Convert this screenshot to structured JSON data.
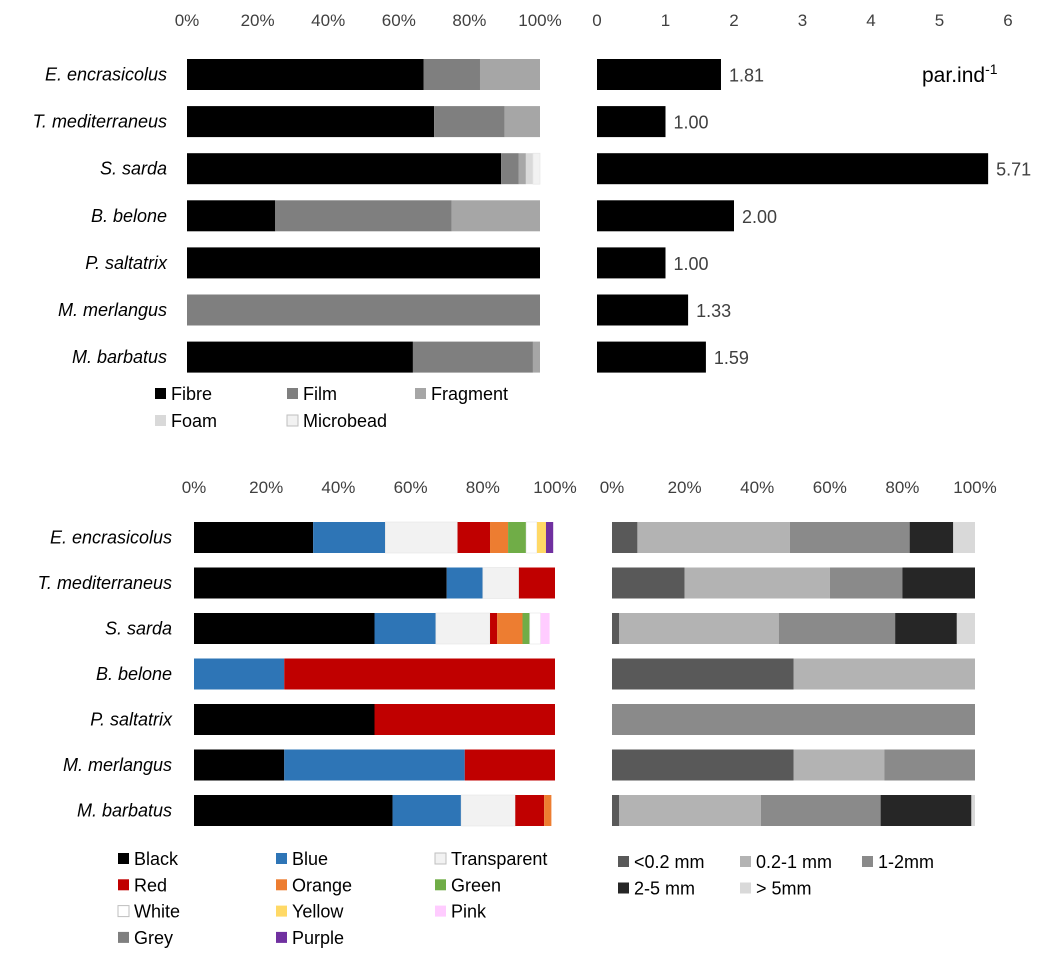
{
  "chart_data": [
    {
      "id": "particle-type",
      "type": "bar",
      "stacked": true,
      "orientation": "horizontal",
      "categories": [
        "E. encrasicolus",
        "T. mediterraneus",
        "S. sarda",
        "B. belone",
        "P. saltatrix",
        "M. merlangus",
        "M. barbatus"
      ],
      "xlim": [
        0,
        100
      ],
      "x_ticks": [
        "0%",
        "20%",
        "40%",
        "60%",
        "80%",
        "100%"
      ],
      "series": [
        {
          "name": "Fibre",
          "color": "#000000",
          "values": [
            67,
            70,
            89,
            25,
            100,
            0,
            64
          ]
        },
        {
          "name": "Film",
          "color": "#7f7f7f",
          "values": [
            16,
            20,
            5,
            50,
            0,
            100,
            34
          ]
        },
        {
          "name": "Fragment",
          "color": "#a6a6a6",
          "values": [
            17,
            10,
            2,
            25,
            0,
            0,
            2
          ]
        },
        {
          "name": "Foam",
          "color": "#d9d9d9",
          "values": [
            0,
            0,
            2,
            0,
            0,
            0,
            0
          ]
        },
        {
          "name": "Microbead",
          "color": "#f2f2f2",
          "values": [
            0,
            0,
            2,
            0,
            0,
            0,
            0
          ]
        }
      ],
      "grid": false,
      "legend_position": "bottom"
    },
    {
      "id": "particles-per-individual",
      "type": "bar",
      "orientation": "horizontal",
      "unit_label": "par.ind",
      "unit_superscript": "-1",
      "categories": [
        "E. encrasicolus",
        "T. mediterraneus",
        "S. sarda",
        "B. belone",
        "P. saltatrix",
        "M. merlangus",
        "M. barbatus"
      ],
      "values": [
        1.81,
        1.0,
        5.71,
        2.0,
        1.0,
        1.33,
        1.59
      ],
      "data_labels": [
        "1.81",
        "1.00",
        "5.71",
        "2.00",
        "1.00",
        "1.33",
        "1.59"
      ],
      "xlim": [
        0,
        6
      ],
      "x_ticks": [
        "0",
        "1",
        "2",
        "3",
        "4",
        "5",
        "6"
      ],
      "color": "#000000",
      "grid": false
    },
    {
      "id": "colour",
      "type": "bar",
      "stacked": true,
      "orientation": "horizontal",
      "categories": [
        "E. encrasicolus",
        "T. mediterraneus",
        "S. sarda",
        "B. belone",
        "P. saltatrix",
        "M. merlangus",
        "M. barbatus"
      ],
      "xlim": [
        0,
        100
      ],
      "x_ticks": [
        "0%",
        "20%",
        "40%",
        "60%",
        "80%",
        "100%"
      ],
      "series": [
        {
          "name": "Black",
          "color": "#000000",
          "values": [
            33,
            70,
            50,
            0,
            50,
            25,
            55
          ]
        },
        {
          "name": "Blue",
          "color": "#2e75b6",
          "values": [
            20,
            10,
            17,
            25,
            0,
            50,
            19
          ]
        },
        {
          "name": "Transparent",
          "color": "#f2f2f2",
          "values": [
            20,
            10,
            15,
            0,
            0,
            0,
            15
          ]
        },
        {
          "name": "Red",
          "color": "#c00000",
          "values": [
            9,
            10,
            2,
            75,
            50,
            25,
            8
          ]
        },
        {
          "name": "Orange",
          "color": "#ed7d31",
          "values": [
            5,
            0,
            7,
            0,
            0,
            0,
            2
          ]
        },
        {
          "name": "Green",
          "color": "#70ad47",
          "values": [
            5,
            0,
            2,
            0,
            0,
            0,
            0
          ]
        },
        {
          "name": "White",
          "color": "#ffffff",
          "values": [
            3,
            0,
            3,
            0,
            0,
            0,
            0
          ]
        },
        {
          "name": "Yellow",
          "color": "#ffd966",
          "values": [
            2.5,
            0,
            0,
            0,
            0,
            0,
            0
          ]
        },
        {
          "name": "Pink",
          "color": "#ffccff",
          "values": [
            0,
            0,
            2.5,
            0,
            0,
            0,
            0
          ]
        },
        {
          "name": "Grey",
          "color": "#7f7f7f",
          "values": [
            0,
            0,
            0,
            0,
            0,
            0,
            0
          ]
        },
        {
          "name": "Purple",
          "color": "#7030a0",
          "values": [
            2,
            0,
            0,
            0,
            0,
            0,
            0
          ]
        }
      ],
      "grid": false,
      "legend_position": "bottom"
    },
    {
      "id": "size-class",
      "type": "bar",
      "stacked": true,
      "orientation": "horizontal",
      "categories": [
        "E. encrasicolus",
        "T. mediterraneus",
        "S. sarda",
        "B. belone",
        "P. saltatrix",
        "M. merlangus",
        "M. barbatus"
      ],
      "xlim": [
        0,
        100
      ],
      "x_ticks": [
        "0%",
        "20%",
        "40%",
        "60%",
        "80%",
        "100%"
      ],
      "series": [
        {
          "name": "<0.2 mm",
          "color": "#595959",
          "values": [
            7,
            20,
            2,
            50,
            0,
            50,
            2
          ]
        },
        {
          "name": "0.2-1 mm",
          "color": "#b3b3b3",
          "values": [
            42,
            40,
            44,
            50,
            0,
            25,
            39
          ]
        },
        {
          "name": "1-2mm",
          "color": "#8a8a8a",
          "values": [
            33,
            20,
            32,
            0,
            100,
            25,
            33
          ]
        },
        {
          "name": "2-5 mm",
          "color": "#262626",
          "values": [
            12,
            20,
            17,
            0,
            0,
            0,
            25
          ]
        },
        {
          "name": "> 5mm",
          "color": "#d9d9d9",
          "values": [
            6,
            0,
            5,
            0,
            0,
            0,
            1
          ]
        }
      ],
      "grid": false,
      "legend_position": "bottom"
    }
  ]
}
